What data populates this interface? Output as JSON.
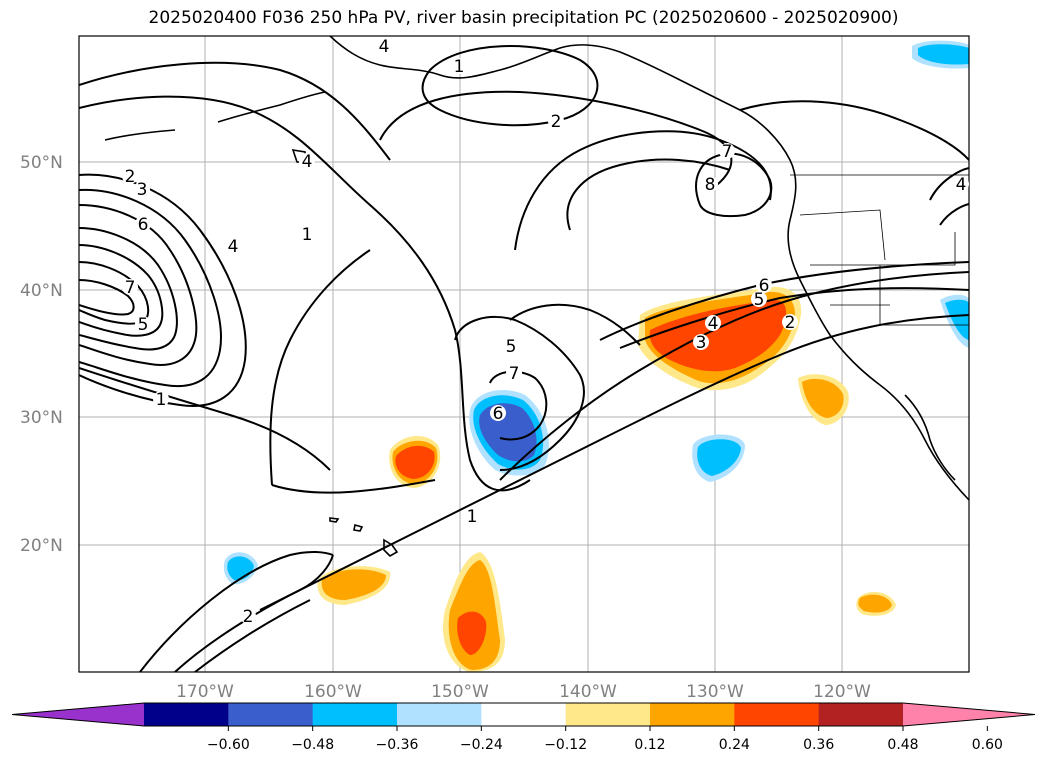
{
  "title": "2025020400 F036 250 hPa PV, river basin precipitation PC (2025020600 - 2025020900)",
  "lat_labels": [
    "50°N",
    "40°N",
    "30°N",
    "20°N"
  ],
  "lon_labels": [
    "170°W",
    "160°W",
    "150°W",
    "140°W",
    "130°W",
    "120°W"
  ],
  "colorbar": {
    "ticks": [
      "−0.60",
      "−0.48",
      "−0.36",
      "−0.24",
      "−0.12",
      "0.12",
      "0.24",
      "0.36",
      "0.48",
      "0.60"
    ],
    "colors": [
      "#9932cc",
      "#00008b",
      "#3a5fcd",
      "#00bfff",
      "#b0e2ff",
      "#ffffff",
      "#ffe88a",
      "#ffa500",
      "#ff4500",
      "#b22222",
      "#ff82ab"
    ]
  },
  "contour_labels": [
    "4",
    "1",
    "2",
    "4",
    "7",
    "8",
    "2",
    "3",
    "6",
    "4",
    "7",
    "5",
    "1",
    "1",
    "5",
    "7",
    "6",
    "6",
    "5",
    "4",
    "3",
    "2",
    "1",
    "2",
    "4"
  ]
}
